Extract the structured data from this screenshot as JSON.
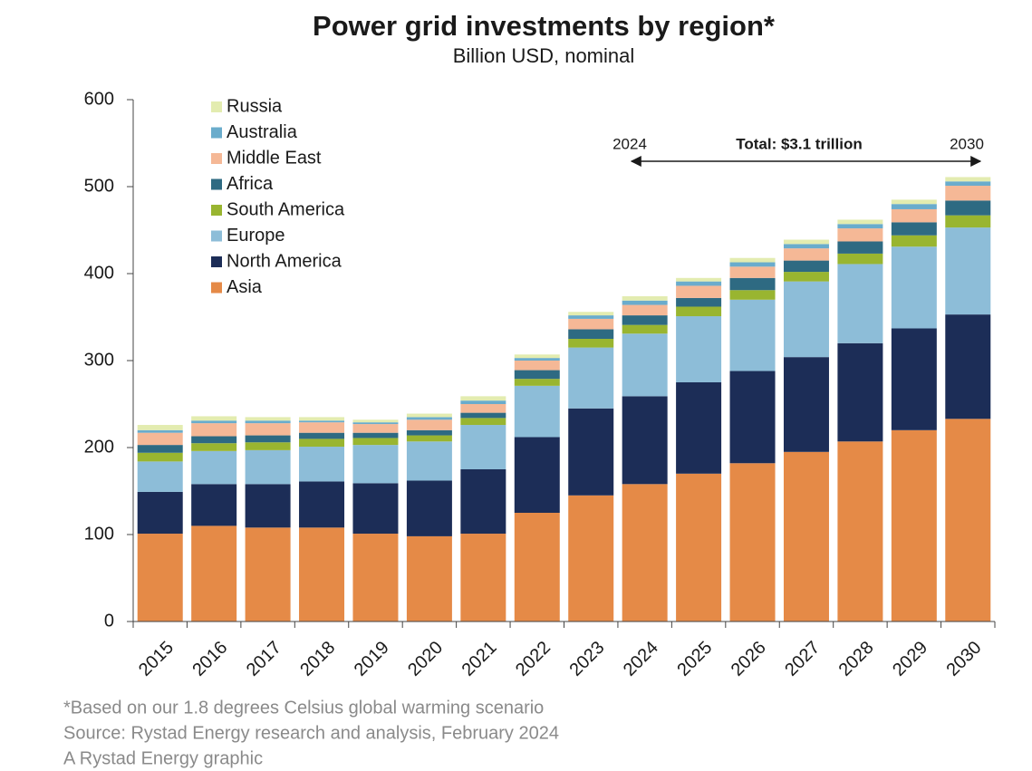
{
  "chart_data": {
    "type": "stacked_bar",
    "title": "Power grid investments by region*",
    "subtitle": "Billion USD, nominal",
    "categories": [
      "2015",
      "2016",
      "2017",
      "2018",
      "2019",
      "2020",
      "2021",
      "2022",
      "2023",
      "2024",
      "2025",
      "2026",
      "2027",
      "2028",
      "2029",
      "2030"
    ],
    "series": [
      {
        "name": "Asia",
        "color": "#e58a47",
        "values": [
          101,
          110,
          108,
          108,
          101,
          98,
          101,
          125,
          145,
          158,
          170,
          182,
          195,
          207,
          220,
          233
        ]
      },
      {
        "name": "North America",
        "color": "#1c2d57",
        "values": [
          48,
          48,
          50,
          53,
          58,
          64,
          74,
          87,
          100,
          101,
          105,
          106,
          109,
          113,
          117,
          120
        ]
      },
      {
        "name": "Europe",
        "color": "#8dbdd8",
        "values": [
          35,
          38,
          39,
          40,
          44,
          45,
          51,
          59,
          70,
          72,
          76,
          82,
          87,
          91,
          94,
          100
        ]
      },
      {
        "name": "South America",
        "color": "#99b530",
        "values": [
          10,
          9,
          9,
          9,
          8,
          7,
          8,
          8,
          10,
          10,
          11,
          11,
          11,
          12,
          13,
          14
        ]
      },
      {
        "name": "Africa",
        "color": "#2e6a82",
        "values": [
          9,
          8,
          8,
          7,
          6,
          6,
          6,
          10,
          11,
          11,
          10,
          14,
          13,
          14,
          15,
          17
        ]
      },
      {
        "name": "Middle East",
        "color": "#f5b896",
        "values": [
          14,
          15,
          14,
          12,
          10,
          12,
          10,
          11,
          12,
          12,
          14,
          13,
          14,
          15,
          15,
          17
        ]
      },
      {
        "name": "Australia",
        "color": "#6aaccc",
        "values": [
          3,
          3,
          3,
          2,
          2,
          3,
          4,
          3,
          4,
          5,
          5,
          5,
          5,
          5,
          6,
          5
        ]
      },
      {
        "name": "Russia",
        "color": "#e3ecb0",
        "values": [
          6,
          5,
          4,
          4,
          3,
          4,
          5,
          4,
          4,
          5,
          4,
          5,
          5,
          5,
          5,
          5
        ]
      }
    ],
    "ylim": [
      0,
      600
    ],
    "yticks": [
      0,
      100,
      200,
      300,
      400,
      500,
      600
    ],
    "annotations": {
      "start": "2024",
      "total": "Total: $3.1 trillion",
      "end": "2030"
    },
    "footnotes": [
      "*Based on our 1.8 degrees Celsius global warming scenario",
      "Source: Rystad Energy research and analysis, February 2024",
      "A Rystad Energy graphic"
    ]
  }
}
